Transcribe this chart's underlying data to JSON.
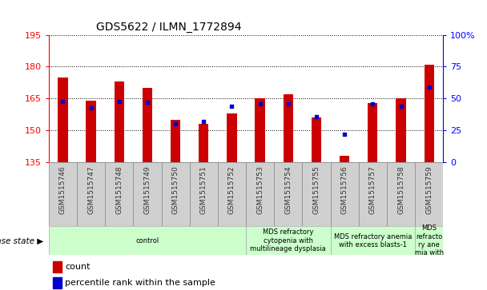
{
  "title": "GDS5622 / ILMN_1772894",
  "samples": [
    "GSM1515746",
    "GSM1515747",
    "GSM1515748",
    "GSM1515749",
    "GSM1515750",
    "GSM1515751",
    "GSM1515752",
    "GSM1515753",
    "GSM1515754",
    "GSM1515755",
    "GSM1515756",
    "GSM1515757",
    "GSM1515758",
    "GSM1515759"
  ],
  "counts": [
    175,
    164,
    173,
    170,
    155,
    153,
    158,
    165,
    167,
    156,
    138,
    163,
    165,
    181
  ],
  "percentiles": [
    48,
    43,
    48,
    47,
    30,
    32,
    44,
    46,
    46,
    36,
    22,
    46,
    44,
    59
  ],
  "ymin": 135,
  "ymax": 195,
  "yticks": [
    135,
    150,
    165,
    180,
    195
  ],
  "y2min": 0,
  "y2max": 100,
  "y2ticks": [
    0,
    25,
    50,
    75,
    100
  ],
  "bar_color": "#cc0000",
  "dot_color": "#0000cc",
  "bg_color": "#ffffff",
  "tick_box_color": "#d0d0d0",
  "disease_groups": [
    {
      "label": "control",
      "start": 0,
      "end": 6
    },
    {
      "label": "MDS refractory\ncytopenia with\nmultilineage dysplasia",
      "start": 7,
      "end": 9
    },
    {
      "label": "MDS refractory anemia\nwith excess blasts-1",
      "start": 10,
      "end": 12
    },
    {
      "label": "MDS\nrefracto\nry ane\nmia with",
      "start": 13,
      "end": 13
    }
  ],
  "group_color": "#ccffcc",
  "group_border": "#aaaaaa"
}
